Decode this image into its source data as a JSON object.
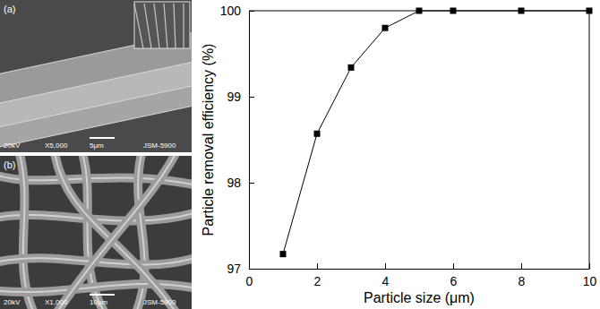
{
  "chart_data": {
    "type": "line",
    "x_label": "Particle size (μm)",
    "y_label": "Particle removal efficiency (%)",
    "x": [
      1,
      2,
      3,
      4,
      5,
      6,
      8,
      10
    ],
    "values": [
      97.17,
      98.57,
      99.34,
      99.8,
      100,
      100,
      100,
      100
    ],
    "color": "#000000",
    "marker": "square",
    "line_style": "solid",
    "xlim": [
      0,
      10
    ],
    "xticks": [
      0,
      2,
      4,
      6,
      8,
      10
    ],
    "ylim": [
      97,
      100
    ],
    "yticks": [
      97,
      98,
      99,
      100
    ],
    "grid": false
  },
  "micrographs": [
    {
      "label": "(a)",
      "caption": [
        "20kV",
        "X5,000",
        "5μm",
        "JSM-5900"
      ]
    },
    {
      "label": "(b)",
      "caption": [
        "20kV",
        "X1,000",
        "10μm",
        "JSM-5900"
      ]
    }
  ]
}
